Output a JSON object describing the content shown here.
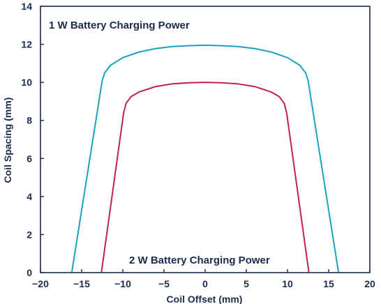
{
  "chart_data": {
    "type": "line",
    "title": "",
    "xlabel": "Coil Offset (mm)",
    "ylabel": "Coil Spacing (mm)",
    "xlim": [
      -20,
      20
    ],
    "ylim": [
      0,
      14
    ],
    "xticks": [
      -20,
      -15,
      -10,
      -5,
      0,
      5,
      10,
      15,
      20
    ],
    "yticks": [
      0,
      2,
      4,
      6,
      8,
      10,
      12,
      14
    ],
    "xtick_labels": [
      "−20",
      "−15",
      "−10",
      "−5",
      "0",
      "5",
      "10",
      "15",
      "20"
    ],
    "ytick_labels": [
      "0",
      "2",
      "4",
      "6",
      "8",
      "10",
      "12",
      "14"
    ],
    "grid": false,
    "annotations": [
      "1 W Battery Charging Power",
      "2 W Battery Charging Power"
    ],
    "series": [
      {
        "color": "#1aa3bf",
        "points": [
          [
            -16.2,
            0
          ],
          [
            -12.5,
            10.1
          ],
          [
            -12.2,
            10.5
          ],
          [
            -11.5,
            10.9
          ],
          [
            -10,
            11.3
          ],
          [
            -8,
            11.6
          ],
          [
            -6,
            11.78
          ],
          [
            -4,
            11.88
          ],
          [
            -2,
            11.93
          ],
          [
            0,
            11.95
          ],
          [
            2,
            11.93
          ],
          [
            4,
            11.88
          ],
          [
            6,
            11.78
          ],
          [
            8,
            11.6
          ],
          [
            10,
            11.3
          ],
          [
            11.5,
            10.9
          ],
          [
            12.2,
            10.5
          ],
          [
            12.5,
            10.1
          ],
          [
            16.2,
            0
          ]
        ]
      },
      {
        "color": "#c0214f",
        "points": [
          [
            -12.6,
            0
          ],
          [
            -9.9,
            8.4
          ],
          [
            -9.6,
            8.9
          ],
          [
            -9,
            9.25
          ],
          [
            -8,
            9.5
          ],
          [
            -6,
            9.78
          ],
          [
            -4,
            9.92
          ],
          [
            -2,
            9.98
          ],
          [
            0,
            10.0
          ],
          [
            2,
            9.98
          ],
          [
            4,
            9.92
          ],
          [
            6,
            9.78
          ],
          [
            8,
            9.5
          ],
          [
            9,
            9.25
          ],
          [
            9.6,
            8.9
          ],
          [
            9.9,
            8.4
          ],
          [
            12.6,
            0
          ]
        ]
      }
    ]
  }
}
